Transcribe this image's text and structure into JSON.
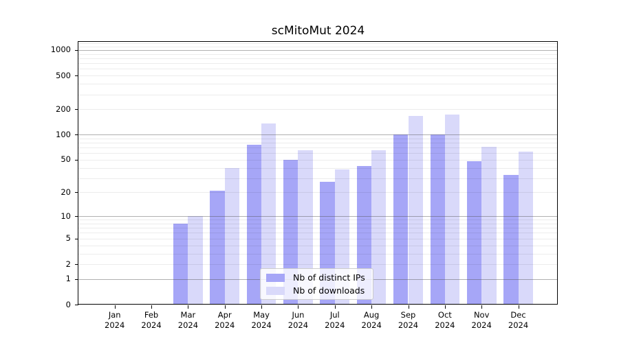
{
  "chart_data": {
    "type": "bar",
    "title": "scMitoMut 2024",
    "categories": [
      "Jan",
      "Feb",
      "Mar",
      "Apr",
      "May",
      "Jun",
      "Jul",
      "Aug",
      "Sep",
      "Oct",
      "Nov",
      "Dec"
    ],
    "category_year": "2024",
    "series": [
      {
        "name": "Nb of distinct IPs",
        "color": "#a6a6f7",
        "values": [
          0,
          0,
          8,
          21,
          75,
          50,
          27,
          42,
          100,
          101,
          48,
          33
        ]
      },
      {
        "name": "Nb of downloads",
        "color": "#d9d9fa",
        "values": [
          0,
          0,
          10,
          40,
          135,
          65,
          38,
          65,
          165,
          172,
          71,
          63
        ]
      }
    ],
    "yscale": "log10(1+x)",
    "ylim": [
      0,
      1250
    ],
    "yticks": [
      0,
      1,
      2,
      5,
      10,
      20,
      50,
      100,
      200,
      500,
      1000
    ],
    "grid": {
      "orientation": "horizontal",
      "major_values": [
        1,
        10,
        100,
        1000
      ],
      "minor_values": [
        2,
        3,
        4,
        5,
        6,
        7,
        8,
        9,
        20,
        30,
        40,
        50,
        60,
        70,
        80,
        90,
        200,
        300,
        400,
        500,
        600,
        700,
        800,
        900,
        1100,
        1200
      ]
    },
    "legend": {
      "position": "lower center"
    },
    "colors": {
      "grid_major": "rgba(80,80,80,0.45)",
      "grid_minor": "rgba(0,0,0,0.075)",
      "axis": "#000000",
      "legend_border": "#cccccc",
      "legend_bg": "rgba(255,255,255,0.8)"
    }
  }
}
